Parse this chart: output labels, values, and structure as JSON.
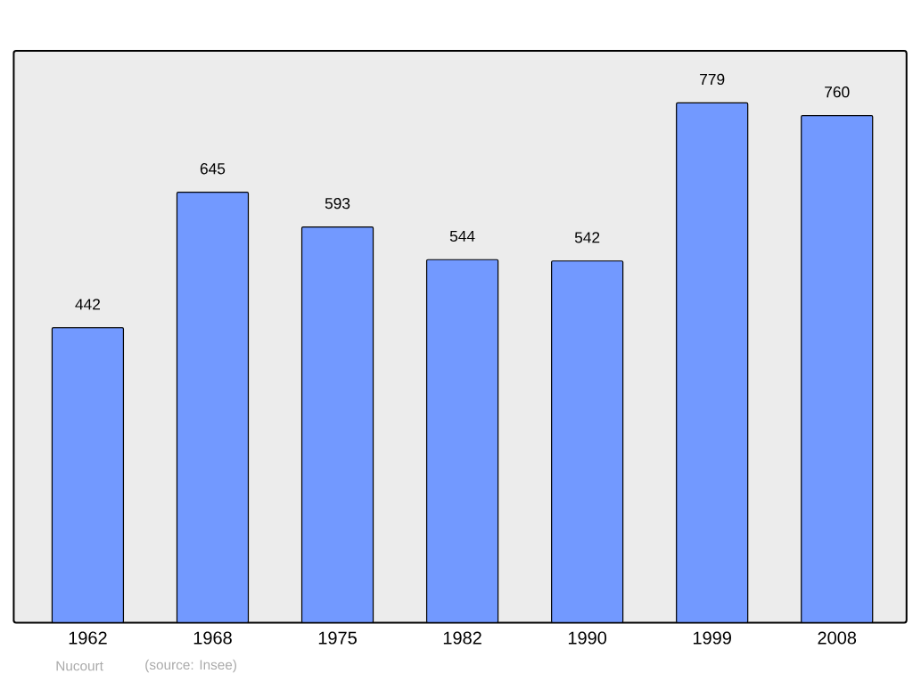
{
  "chart_data": {
    "type": "bar",
    "categories": [
      "1962",
      "1968",
      "1975",
      "1982",
      "1990",
      "1999",
      "2008"
    ],
    "values": [
      442,
      645,
      593,
      544,
      542,
      779,
      760
    ],
    "color": "#7299ff",
    "data_labels": true,
    "annotations": [
      "Nucourt",
      "(source: Insee)"
    ]
  }
}
